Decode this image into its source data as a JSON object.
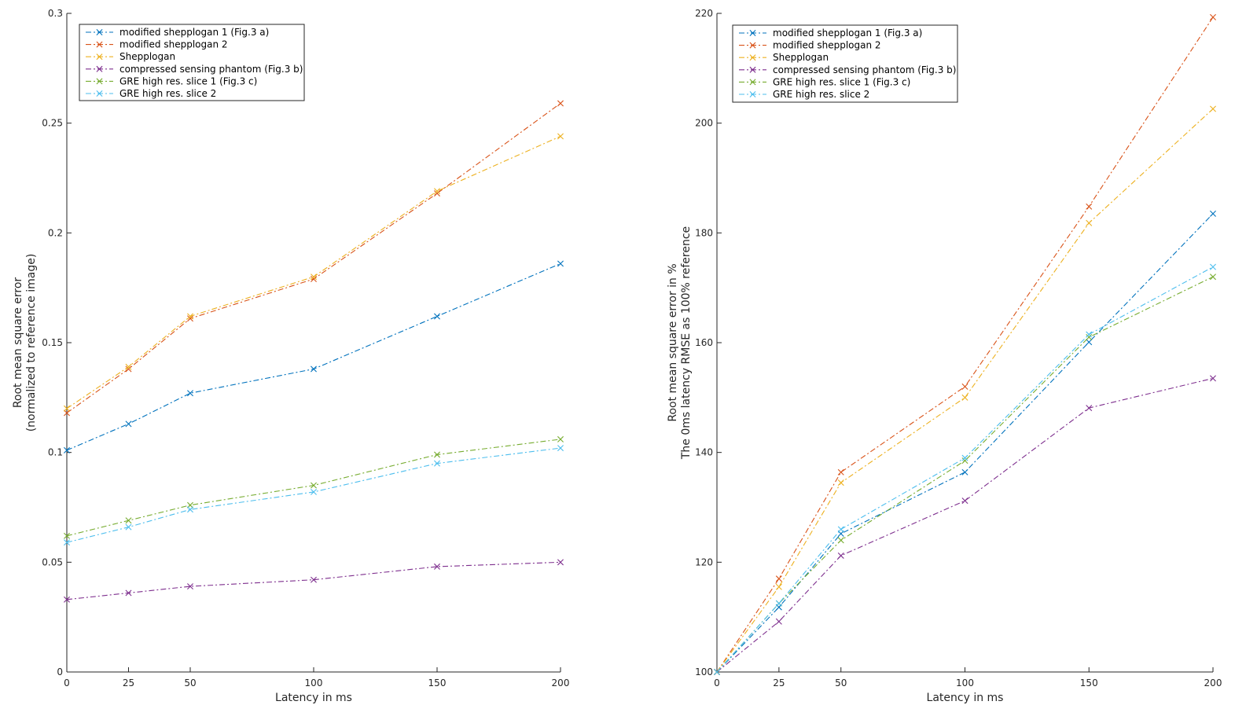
{
  "chart_data": [
    {
      "type": "line",
      "title": "",
      "xlabel": "Latency in ms",
      "ylabel": [
        "Root mean square error",
        "(normalized to reference image)"
      ],
      "xlim": [
        0,
        200
      ],
      "ylim": [
        0,
        0.3
      ],
      "xticks": [
        0,
        25,
        50,
        100,
        150,
        200
      ],
      "yticks": [
        0,
        0.05,
        0.1,
        0.15,
        0.2,
        0.25,
        0.3
      ],
      "ytick_labels": [
        "0",
        "0.05",
        "0.1",
        "0.15",
        "0.2",
        "0.25",
        "0.3"
      ],
      "legend_position": "top-left",
      "x": [
        0,
        25,
        50,
        100,
        150,
        200
      ],
      "series": [
        {
          "name": "modified shepplogan 1 (Fig.3 a)",
          "color": "#0072BD",
          "values": [
            0.101,
            0.113,
            0.127,
            0.138,
            0.162,
            0.186
          ]
        },
        {
          "name": "modified shepplogan 2",
          "color": "#D95319",
          "values": [
            0.118,
            0.138,
            0.161,
            0.179,
            0.218,
            0.259
          ]
        },
        {
          "name": "Shepplogan",
          "color": "#EDB120",
          "values": [
            0.12,
            0.139,
            0.162,
            0.18,
            0.219,
            0.244
          ]
        },
        {
          "name": "compressed sensing phantom (Fig.3 b)",
          "color": "#7E2F8E",
          "values": [
            0.033,
            0.036,
            0.039,
            0.042,
            0.048,
            0.05
          ]
        },
        {
          "name": "GRE high res. slice 1 (Fig.3 c)",
          "color": "#77AC30",
          "values": [
            0.062,
            0.069,
            0.076,
            0.085,
            0.099,
            0.106
          ]
        },
        {
          "name": "GRE high res. slice 2",
          "color": "#4DBEEE",
          "values": [
            0.059,
            0.066,
            0.074,
            0.082,
            0.095,
            0.102
          ]
        }
      ]
    },
    {
      "type": "line",
      "title": "",
      "xlabel": "Latency in ms",
      "ylabel": [
        "Root mean square error in %",
        "The 0ms latency RMSE as 100% reference"
      ],
      "xlim": [
        0,
        200
      ],
      "ylim": [
        100,
        220
      ],
      "xticks": [
        0,
        25,
        50,
        100,
        150,
        200
      ],
      "yticks": [
        100,
        120,
        140,
        160,
        180,
        200,
        220
      ],
      "ytick_labels": [
        "100",
        "120",
        "140",
        "160",
        "180",
        "200",
        "220"
      ],
      "legend_position": "top-left",
      "x": [
        0,
        25,
        50,
        100,
        150,
        200
      ],
      "series": [
        {
          "name": "modified shepplogan 1 (Fig.3 a)",
          "color": "#0072BD",
          "values": [
            100,
            111.8,
            125.2,
            136.4,
            160.1,
            183.5
          ]
        },
        {
          "name": "modified shepplogan 2",
          "color": "#D95319",
          "values": [
            100,
            117.0,
            136.4,
            152.0,
            184.8,
            219.3
          ]
        },
        {
          "name": "Shepplogan",
          "color": "#EDB120",
          "values": [
            100,
            115.5,
            134.5,
            150.0,
            181.8,
            202.6
          ]
        },
        {
          "name": "compressed sensing phantom (Fig.3 b)",
          "color": "#7E2F8E",
          "values": [
            100,
            109.2,
            121.2,
            131.2,
            148.1,
            153.5
          ]
        },
        {
          "name": "GRE high res. slice 1 (Fig.3 c)",
          "color": "#77AC30",
          "values": [
            100,
            112.5,
            124.0,
            138.5,
            161.0,
            172.0
          ]
        },
        {
          "name": "GRE high res. slice 2",
          "color": "#4DBEEE",
          "values": [
            100,
            112.5,
            126.0,
            139.0,
            161.5,
            173.8
          ]
        }
      ]
    }
  ]
}
